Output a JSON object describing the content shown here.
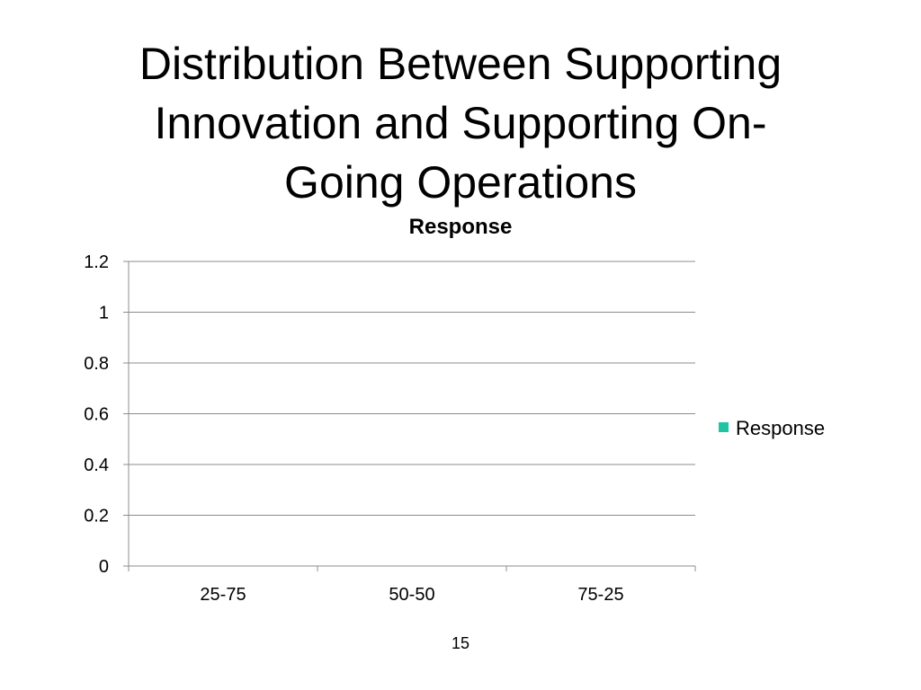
{
  "slide": {
    "title_lines": [
      "Distribution Between Supporting",
      "Innovation and Supporting On-",
      "Going Operations"
    ],
    "page_number": "15"
  },
  "chart_data": {
    "type": "bar",
    "title": "Response",
    "categories": [
      "25-75",
      "50-50",
      "75-25"
    ],
    "series": [
      {
        "name": "Response",
        "values": [
          null,
          null,
          null
        ],
        "color": "#20c4a4"
      }
    ],
    "ylim": [
      0,
      1.2
    ],
    "yticks": [
      "0",
      "0.2",
      "0.4",
      "0.6",
      "0.8",
      "1",
      "1.2"
    ],
    "ytick_values": [
      0,
      0.2,
      0.4,
      0.6,
      0.8,
      1.0,
      1.2
    ],
    "grid": true,
    "legend_position": "right",
    "xlabel": "",
    "ylabel": ""
  }
}
